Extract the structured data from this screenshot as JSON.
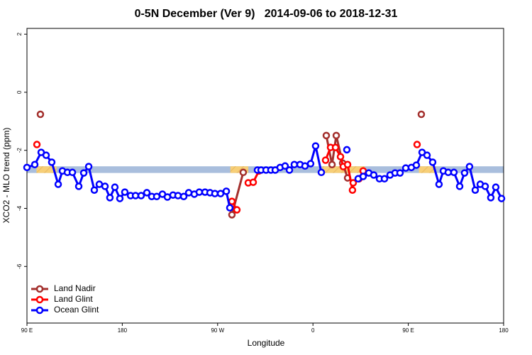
{
  "chart_data": {
    "type": "line",
    "title": "0-5N December (Ver 9)   2014-09-06 to 2018-12-31",
    "x_label": "Longitude",
    "y_label": "XCO2 - MLO trend (ppm)",
    "xlim": [
      90,
      540
    ],
    "xticks": [
      {
        "value": 90,
        "label": "90 E"
      },
      180,
      {
        "value": 270,
        "label": "90 W"
      },
      {
        "value": 360,
        "label": "0"
      },
      {
        "value": 450,
        "label": "90 E"
      },
      {
        "value": 540,
        "label": "180"
      }
    ],
    "ylim": [
      -7.95,
      2.2
    ],
    "yticks": [
      -6,
      -4,
      -2,
      0,
      2
    ],
    "legend": "bottom-left",
    "band": {
      "range": [
        -2.78,
        -2.55
      ],
      "color": "#a9bedd",
      "land_color": "#f7cf78",
      "land_spans": [
        [
          99,
          118
        ],
        [
          282,
          299
        ],
        [
          369,
          409
        ],
        [
          460,
          476
        ]
      ]
    },
    "series": [
      {
        "name": "Land Nadir",
        "color": "#a3302d",
        "x": [
          102.7,
          null,
          283.5,
          294.2,
          null,
          372.6,
          378.0,
          382.0,
          388.0,
          392.7,
          null,
          462.3
        ],
        "values": [
          -0.76,
          null,
          -4.22,
          -2.76,
          null,
          -1.49,
          -2.49,
          -1.49,
          -2.44,
          -2.95,
          null,
          -0.76
        ]
      },
      {
        "name": "Land Glint",
        "color": "#ff0000",
        "x": [
          99.4,
          null,
          283.5,
          288.2,
          null,
          298.9,
          303.6,
          309.0,
          null,
          371.9,
          376.6,
          381.3,
          386.0,
          388.6,
          392.7,
          397.3,
          398.0,
          403.4,
          407.4,
          null,
          458.3
        ],
        "values": [
          -1.8,
          null,
          -3.76,
          -4.05,
          null,
          -3.12,
          -3.1,
          -2.71,
          null,
          -2.34,
          -1.9,
          -1.9,
          -2.22,
          -2.56,
          -2.49,
          -3.37,
          -3.12,
          -2.98,
          -2.71,
          null,
          -1.8
        ]
      },
      {
        "name": "Ocean Glint",
        "color": "#0000ff",
        "x": [
          90.0,
          97.4,
          103.4,
          108.1,
          113.4,
          119.5,
          123.5,
          128.2,
          132.9,
          138.9,
          143.6,
          148.3,
          153.6,
          158.3,
          163.7,
          168.3,
          173.0,
          177.7,
          182.4,
          187.8,
          192.5,
          197.8,
          203.2,
          207.8,
          212.5,
          217.9,
          222.6,
          227.9,
          232.6,
          238.0,
          242.7,
          248.0,
          252.7,
          258.1,
          262.8,
          267.4,
          272.8,
          278.2,
          281.5,
          null,
          307.6,
          311.0,
          315.7,
          320.3,
          324.4,
          329.0,
          333.7,
          337.8,
          342.4,
          347.8,
          352.5,
          357.8,
          362.5,
          367.9,
          null,
          392.0,
          null,
          402.7,
          407.4,
          412.7,
          417.4,
          422.8,
          427.5,
          432.8,
          437.5,
          442.2,
          447.6,
          452.9,
          457.6,
          463.0,
          467.7,
          473.0,
          479.0,
          483.1,
          487.7,
          493.1,
          498.5,
          503.1,
          507.8,
          513.2,
          517.9,
          522.6,
          527.9,
          532.6,
          538.0
        ],
        "values": [
          -2.59,
          -2.49,
          -2.07,
          -2.17,
          -2.41,
          -3.17,
          -2.71,
          -2.76,
          -2.76,
          -3.24,
          -2.78,
          -2.56,
          -3.37,
          -3.17,
          -3.24,
          -3.63,
          -3.27,
          -3.66,
          -3.44,
          -3.56,
          -3.56,
          -3.56,
          -3.46,
          -3.59,
          -3.59,
          -3.51,
          -3.61,
          -3.54,
          -3.56,
          -3.59,
          -3.46,
          -3.51,
          -3.44,
          -3.44,
          -3.46,
          -3.49,
          -3.49,
          -3.41,
          -3.98,
          null,
          -2.68,
          -2.68,
          -2.68,
          -2.68,
          -2.68,
          -2.59,
          -2.54,
          -2.68,
          -2.49,
          -2.49,
          -2.54,
          -2.46,
          -1.85,
          -2.76,
          null,
          -1.98,
          null,
          -2.98,
          -2.9,
          -2.78,
          -2.85,
          -2.98,
          -2.98,
          -2.85,
          -2.78,
          -2.78,
          -2.61,
          -2.59,
          -2.51,
          -2.07,
          -2.17,
          -2.41,
          -3.17,
          -2.71,
          -2.76,
          -2.76,
          -3.24,
          -2.78,
          -2.56,
          -3.37,
          -3.17,
          -3.24,
          -3.63,
          -3.27,
          -3.66
        ]
      }
    ]
  }
}
